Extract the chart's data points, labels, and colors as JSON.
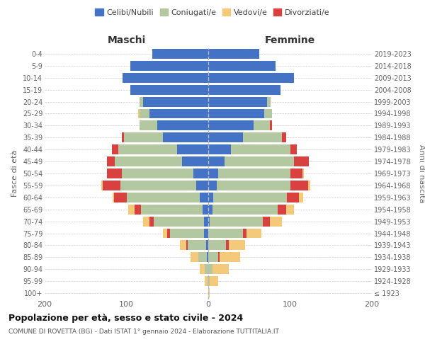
{
  "age_groups": [
    "100+",
    "95-99",
    "90-94",
    "85-89",
    "80-84",
    "75-79",
    "70-74",
    "65-69",
    "60-64",
    "55-59",
    "50-54",
    "45-49",
    "40-44",
    "35-39",
    "30-34",
    "25-29",
    "20-24",
    "15-19",
    "10-14",
    "5-9",
    "0-4"
  ],
  "birth_years": [
    "≤ 1923",
    "1924-1928",
    "1929-1933",
    "1934-1938",
    "1939-1943",
    "1944-1948",
    "1949-1953",
    "1954-1958",
    "1959-1963",
    "1964-1968",
    "1969-1973",
    "1974-1978",
    "1979-1983",
    "1984-1988",
    "1989-1993",
    "1994-1998",
    "1999-2003",
    "2004-2008",
    "2009-2013",
    "2014-2018",
    "2019-2023"
  ],
  "colors": {
    "celibi": "#4472c4",
    "coniugati": "#b3c8a0",
    "vedovi": "#f5c97a",
    "divorziati": "#d94040"
  },
  "maschi": {
    "celibi": [
      0,
      0,
      0,
      2,
      3,
      5,
      5,
      7,
      10,
      15,
      18,
      32,
      38,
      55,
      62,
      72,
      80,
      95,
      105,
      95,
      68
    ],
    "coniugati": [
      0,
      1,
      4,
      10,
      22,
      42,
      62,
      75,
      90,
      92,
      88,
      82,
      72,
      48,
      22,
      12,
      4,
      0,
      0,
      0,
      0
    ],
    "vedovi": [
      0,
      3,
      6,
      10,
      8,
      5,
      8,
      8,
      2,
      2,
      0,
      0,
      0,
      0,
      0,
      2,
      0,
      0,
      0,
      0,
      0
    ],
    "divorziati": [
      0,
      0,
      0,
      0,
      2,
      3,
      5,
      8,
      15,
      22,
      18,
      10,
      8,
      3,
      0,
      0,
      0,
      0,
      0,
      0,
      0
    ]
  },
  "femmine": {
    "celibi": [
      0,
      0,
      0,
      0,
      0,
      0,
      2,
      5,
      6,
      10,
      12,
      20,
      28,
      42,
      55,
      68,
      72,
      88,
      105,
      82,
      62
    ],
    "coniugati": [
      0,
      2,
      5,
      12,
      22,
      42,
      65,
      80,
      90,
      90,
      88,
      85,
      72,
      48,
      20,
      10,
      4,
      0,
      0,
      0,
      0
    ],
    "vedovi": [
      2,
      10,
      20,
      25,
      20,
      18,
      15,
      10,
      5,
      3,
      2,
      0,
      0,
      0,
      0,
      0,
      0,
      0,
      0,
      0,
      0
    ],
    "divorziati": [
      0,
      0,
      0,
      2,
      3,
      5,
      8,
      10,
      15,
      22,
      15,
      18,
      8,
      5,
      3,
      0,
      0,
      0,
      0,
      0,
      0
    ]
  },
  "xlim": 200,
  "title": "Popolazione per età, sesso e stato civile - 2024",
  "subtitle": "COMUNE DI ROVETTA (BG) - Dati ISTAT 1° gennaio 2024 - Elaborazione TUTTITALIA.IT",
  "ylabel_left": "Fasce di età",
  "ylabel_right": "Anni di nascita",
  "xlabel_maschi": "Maschi",
  "xlabel_femmine": "Femmine",
  "bg_color": "#ffffff",
  "grid_color": "#cccccc",
  "legend_labels": [
    "Celibi/Nubili",
    "Coniugati/e",
    "Vedovi/e",
    "Divorziati/e"
  ]
}
